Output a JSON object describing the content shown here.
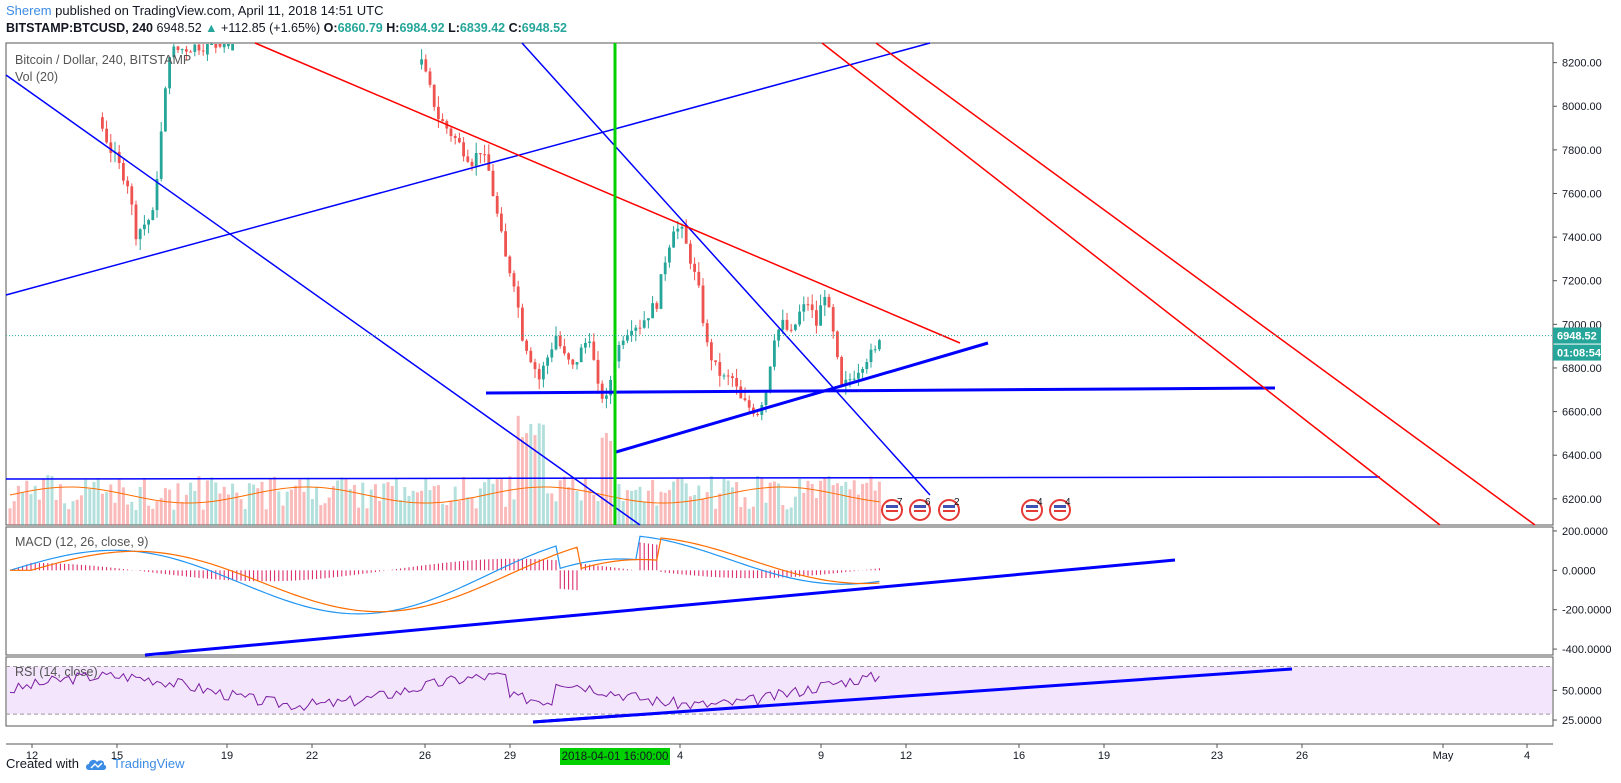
{
  "header": {
    "author": "Sherem",
    "published_text": "published on TradingView.com, April 11, 2018 14:51 UTC"
  },
  "ticker": {
    "symbol": "BITSTAMP:BTCUSD, 240",
    "last": "6948.52",
    "change": "+112.85 (+1.65%)",
    "open_label": "O:",
    "open": "6860.79",
    "high_label": "H:",
    "high": "6984.92",
    "low_label": "L:",
    "low": "6839.42",
    "close_label": "C:",
    "close": "6948.52"
  },
  "colors": {
    "up": "#26a69a",
    "down": "#ef5350",
    "blue_line": "#0000ff",
    "red_line": "#ff0000",
    "green_line": "#00d000",
    "macd_line": "#2196f3",
    "signal_line": "#ff6d00",
    "hist": "#d81b60",
    "rsi": "#7b1fa2",
    "rsi_band": "#f3e5fc"
  },
  "chart_data": {
    "type": "candlestick",
    "main_pane": {
      "title": "Bitcoin / Dollar, 240, BITSTAMP",
      "volume_label": "Vol (20)",
      "y_ticks": [
        "8200.00",
        "8000.00",
        "7800.00",
        "7600.00",
        "7400.00",
        "7200.00",
        "7000.00",
        "6800.00",
        "6600.00",
        "6400.00",
        "6200.00"
      ],
      "ylim": [
        6080,
        8290
      ],
      "last_price_badge": "6948.52",
      "countdown_badge": "01:08:54",
      "events": [
        "7",
        "6",
        "2",
        "4",
        "4"
      ]
    },
    "x_ticks": [
      "12",
      "15",
      "19",
      "22",
      "26",
      "29",
      "4",
      "9",
      "12",
      "16",
      "19",
      "23",
      "26",
      "May",
      "4"
    ],
    "crosshair_date": "2018-04-01 16:00:00",
    "macd_pane": {
      "title": "MACD (12, 26, close, 9)",
      "y_ticks": [
        "200.0000",
        "0.0000",
        "-200.0000",
        "-400.0000"
      ],
      "ylim": [
        -430,
        220
      ]
    },
    "rsi_pane": {
      "title": "RSI (14, close)",
      "y_ticks": [
        "50.0000",
        "25.0000"
      ],
      "ylim": [
        20,
        78
      ],
      "band": [
        30,
        70
      ]
    }
  },
  "footer": {
    "created_with": "Created with",
    "brand": "TradingView"
  }
}
